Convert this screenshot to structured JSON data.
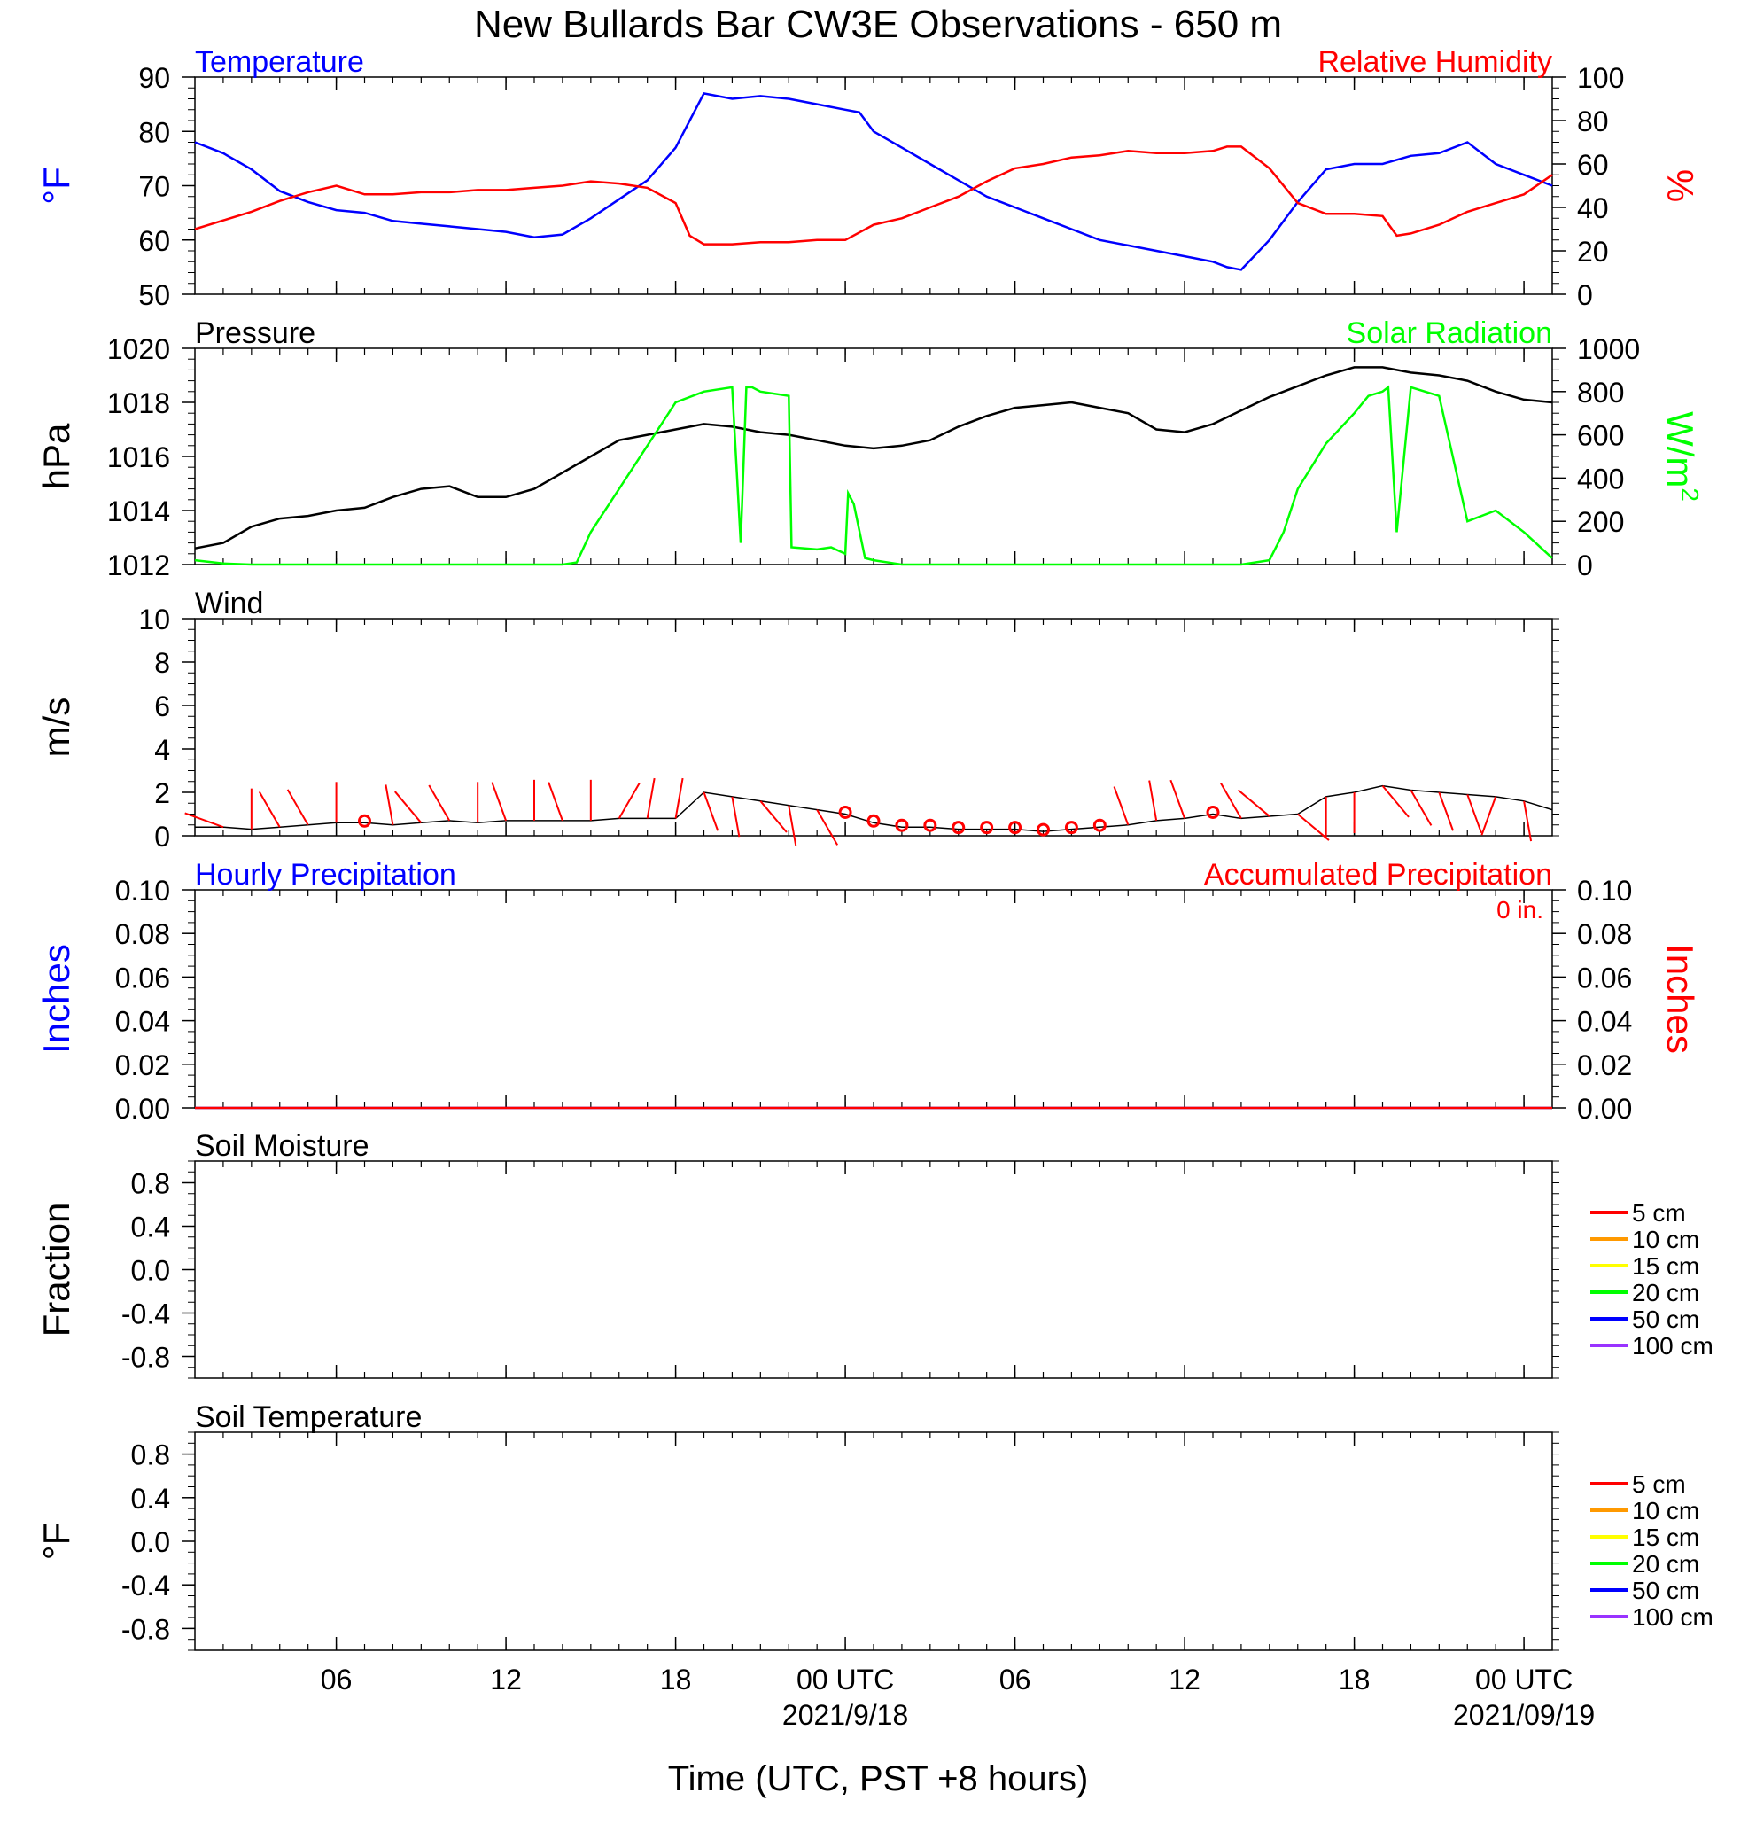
{
  "title": "New Bullards Bar CW3E Observations - 650 m",
  "colors": {
    "temperature": "#0000ff",
    "humidity": "#ff0000",
    "pressure": "#000000",
    "solar": "#00ff00",
    "wind": "#000000",
    "wind_barb": "#ff0000",
    "hourly_precip": "#0000ff",
    "accum_precip": "#ff0000"
  },
  "x_axis": {
    "label": "Time (UTC, PST +8 hours)",
    "range_hours": [
      0,
      48
    ],
    "ticks": [
      {
        "hour": 5,
        "label": "06"
      },
      {
        "hour": 11,
        "label": "12"
      },
      {
        "hour": 17,
        "label": "18"
      },
      {
        "hour": 23,
        "label": "00 UTC"
      },
      {
        "hour": 29,
        "label": "06"
      },
      {
        "hour": 35,
        "label": "12"
      },
      {
        "hour": 41,
        "label": "18"
      },
      {
        "hour": 47,
        "label": "00 UTC"
      }
    ],
    "date_labels": [
      {
        "hour": 23,
        "label": "2021/9/18"
      },
      {
        "hour": 47,
        "label": "2021/09/19"
      }
    ]
  },
  "chart_data": [
    {
      "type": "line",
      "title_left": "Temperature",
      "title_right": "Relative Humidity",
      "ylabel_left": "°F",
      "ylabel_right": "%",
      "ylim_left": [
        50,
        90
      ],
      "yticks_left": [
        "50",
        "60",
        "70",
        "80",
        "90"
      ],
      "ylim_right": [
        0,
        100
      ],
      "yticks_right": [
        "0",
        "20",
        "40",
        "60",
        "80",
        "100"
      ],
      "series": [
        {
          "name": "Temperature",
          "axis": "left",
          "color": "#0000ff",
          "x": [
            0,
            1,
            2,
            3,
            4,
            5,
            6,
            7,
            8,
            9,
            10,
            11,
            12,
            13,
            14,
            15,
            16,
            17,
            17.5,
            18,
            19,
            20,
            21,
            22,
            23,
            23.5,
            24,
            25,
            26,
            27,
            28,
            29,
            30,
            31,
            32,
            33,
            34,
            35,
            36,
            36.5,
            37,
            38,
            39,
            40,
            41,
            42,
            43,
            44,
            45,
            46,
            47,
            48
          ],
          "y": [
            78,
            76,
            73,
            69,
            67,
            65.5,
            65,
            63.5,
            63,
            62.5,
            62,
            61.5,
            60.5,
            61,
            64,
            67.5,
            71,
            77,
            82,
            87,
            86,
            86.5,
            86,
            85,
            84,
            83.5,
            80,
            77,
            74,
            71,
            68,
            66,
            64,
            62,
            60,
            59,
            58,
            57,
            56,
            55,
            54.5,
            60,
            67,
            73,
            74,
            74,
            75.5,
            76,
            78,
            74,
            72,
            70
          ]
        },
        {
          "name": "Relative Humidity",
          "axis": "right",
          "color": "#ff0000",
          "x": [
            0,
            1,
            2,
            3,
            4,
            5,
            6,
            7,
            8,
            9,
            10,
            11,
            12,
            13,
            14,
            15,
            16,
            17,
            17.5,
            18,
            19,
            20,
            21,
            22,
            23,
            24,
            25,
            26,
            27,
            28,
            29,
            30,
            31,
            32,
            33,
            34,
            35,
            36,
            36.5,
            37,
            38,
            39,
            40,
            41,
            42,
            42.5,
            43,
            44,
            45,
            46,
            47,
            48
          ],
          "y": [
            30,
            34,
            38,
            43,
            47,
            50,
            46,
            46,
            47,
            47,
            48,
            48,
            49,
            50,
            52,
            51,
            49,
            42,
            27,
            23,
            23,
            24,
            24,
            25,
            25,
            32,
            35,
            40,
            45,
            52,
            58,
            60,
            63,
            64,
            66,
            65,
            65,
            66,
            68,
            68,
            58,
            42,
            37,
            37,
            36,
            27,
            28,
            32,
            38,
            42,
            46,
            55
          ]
        }
      ]
    },
    {
      "type": "line",
      "title_left": "Pressure",
      "title_right": "Solar Radiation",
      "ylabel_left": "hPa",
      "ylabel_right": "W/m2",
      "ylim_left": [
        1012,
        1020
      ],
      "yticks_left": [
        "1012",
        "1014",
        "1016",
        "1018",
        "1020"
      ],
      "ylim_right": [
        0,
        1000
      ],
      "yticks_right": [
        "0",
        "200",
        "400",
        "600",
        "800",
        "1000"
      ],
      "series": [
        {
          "name": "Pressure",
          "axis": "left",
          "color": "#000000",
          "x": [
            0,
            1,
            2,
            3,
            4,
            5,
            6,
            7,
            8,
            9,
            10,
            11,
            12,
            13,
            14,
            15,
            16,
            17,
            18,
            19,
            20,
            21,
            22,
            23,
            24,
            25,
            26,
            27,
            28,
            29,
            30,
            31,
            32,
            33,
            34,
            35,
            36,
            37,
            38,
            39,
            40,
            41,
            42,
            43,
            44,
            45,
            46,
            47,
            48
          ],
          "y": [
            1012.6,
            1012.8,
            1013.4,
            1013.7,
            1013.8,
            1014.0,
            1014.1,
            1014.5,
            1014.8,
            1014.9,
            1014.5,
            1014.5,
            1014.8,
            1015.4,
            1016.0,
            1016.6,
            1016.8,
            1017.0,
            1017.2,
            1017.1,
            1016.9,
            1016.8,
            1016.6,
            1016.4,
            1016.3,
            1016.4,
            1016.6,
            1017.1,
            1017.5,
            1017.8,
            1017.9,
            1018.0,
            1017.8,
            1017.6,
            1017.0,
            1016.9,
            1017.2,
            1017.7,
            1018.2,
            1018.6,
            1019.0,
            1019.3,
            1019.3,
            1019.1,
            1019.0,
            1018.8,
            1018.4,
            1018.1,
            1018.0
          ]
        },
        {
          "name": "Solar Radiation",
          "axis": "right",
          "color": "#00ff00",
          "x": [
            0,
            1,
            2,
            3,
            4,
            5,
            6,
            7,
            8,
            9,
            10,
            11,
            12,
            13,
            13.5,
            14,
            15,
            16,
            17,
            18,
            19,
            19.3,
            19.5,
            19.7,
            20,
            21,
            21.1,
            22,
            22.5,
            23,
            23.1,
            23.3,
            23.7,
            24,
            25,
            26,
            27,
            28,
            29,
            30,
            31,
            32,
            33,
            34,
            35,
            36,
            37,
            38,
            38.5,
            39,
            40,
            41,
            41.5,
            42,
            42.2,
            42.5,
            43,
            44,
            45,
            46,
            47,
            48
          ],
          "y": [
            20,
            5,
            0,
            0,
            0,
            0,
            0,
            0,
            0,
            0,
            0,
            0,
            0,
            0,
            10,
            150,
            350,
            550,
            750,
            800,
            820,
            100,
            820,
            820,
            800,
            780,
            80,
            70,
            80,
            50,
            330,
            280,
            30,
            20,
            0,
            0,
            0,
            0,
            0,
            0,
            0,
            0,
            0,
            0,
            0,
            0,
            0,
            20,
            150,
            350,
            560,
            700,
            780,
            800,
            820,
            150,
            820,
            780,
            200,
            250,
            150,
            30
          ]
        }
      ]
    },
    {
      "type": "line",
      "title_left": "Wind",
      "ylabel_left": "m/s",
      "ylim_left": [
        0,
        10
      ],
      "yticks_left": [
        "0",
        "2",
        "4",
        "6",
        "8",
        "10"
      ],
      "series": [
        {
          "name": "Wind",
          "axis": "left",
          "color": "#000000",
          "x": [
            0,
            1,
            2,
            3,
            4,
            5,
            6,
            7,
            8,
            9,
            10,
            11,
            12,
            13,
            14,
            15,
            16,
            17,
            18,
            19,
            20,
            21,
            22,
            23,
            24,
            25,
            26,
            27,
            28,
            29,
            30,
            31,
            32,
            33,
            34,
            35,
            36,
            37,
            38,
            39,
            40,
            41,
            42,
            43,
            44,
            45,
            46,
            47,
            48
          ],
          "y": [
            0.4,
            0.4,
            0.3,
            0.4,
            0.5,
            0.6,
            0.6,
            0.5,
            0.6,
            0.7,
            0.6,
            0.7,
            0.7,
            0.7,
            0.7,
            0.8,
            0.8,
            0.8,
            2.0,
            1.8,
            1.6,
            1.4,
            1.2,
            1.0,
            0.6,
            0.4,
            0.4,
            0.3,
            0.3,
            0.3,
            0.2,
            0.3,
            0.4,
            0.5,
            0.7,
            0.8,
            1.0,
            0.8,
            0.9,
            1.0,
            1.8,
            2.0,
            2.3,
            2.1,
            2.0,
            1.9,
            1.8,
            1.6,
            1.2
          ]
        },
        {
          "name": "Wind direction",
          "type": "barbs",
          "color": "#ff0000",
          "x": [
            1,
            2,
            3,
            4,
            5,
            6,
            7,
            8,
            9,
            10,
            11,
            12,
            13,
            14,
            15,
            16,
            17,
            18,
            19,
            20,
            21,
            22,
            23,
            24,
            25,
            26,
            27,
            28,
            29,
            30,
            31,
            32,
            33,
            34,
            35,
            36,
            37,
            38,
            39,
            40,
            41,
            42,
            43,
            44,
            45,
            46,
            47
          ],
          "speed": [
            1.0,
            0.5,
            1.2,
            1.0,
            0.5,
            0,
            1.2,
            1.0,
            1.1,
            0.5,
            1.0,
            1.0,
            1.0,
            1.0,
            1.0,
            1.2,
            1.0,
            1.0,
            1.0,
            1.0,
            1.0,
            1.0,
            0,
            0,
            0,
            0,
            0,
            0,
            0,
            0,
            0,
            0,
            1.0,
            1.0,
            1.0,
            0,
            1.2,
            1.0,
            1.0,
            1.0,
            1.0,
            1.0,
            1.2,
            1.0,
            1.0,
            1.0,
            1.0
          ],
          "dir_deg": [
            290,
            0,
            330,
            330,
            0,
            0,
            350,
            320,
            330,
            0,
            340,
            0,
            340,
            0,
            30,
            10,
            10,
            160,
            170,
            140,
            170,
            150,
            0,
            0,
            0,
            0,
            0,
            0,
            0,
            0,
            0,
            0,
            340,
            350,
            340,
            0,
            330,
            310,
            130,
            180,
            180,
            140,
            150,
            160,
            160,
            200,
            170
          ]
        }
      ]
    },
    {
      "type": "line",
      "title_left": "Hourly Precipitation",
      "title_right": "Accumulated Precipitation",
      "annotation": "0 in.",
      "ylabel_left": "Inches",
      "ylabel_right": "Inches",
      "ylim_left": [
        0,
        0.1
      ],
      "yticks_left": [
        "0.00",
        "0.02",
        "0.04",
        "0.06",
        "0.08",
        "0.10"
      ],
      "ylim_right": [
        0,
        0.1
      ],
      "yticks_right": [
        "0.00",
        "0.02",
        "0.04",
        "0.06",
        "0.08",
        "0.10"
      ],
      "series": [
        {
          "name": "Hourly Precipitation",
          "axis": "left",
          "color": "#0000ff",
          "x": [
            0,
            48
          ],
          "y": [
            0,
            0
          ]
        },
        {
          "name": "Accumulated Precipitation",
          "axis": "right",
          "color": "#ff0000",
          "x": [
            0,
            48
          ],
          "y": [
            0,
            0
          ]
        }
      ]
    },
    {
      "type": "line",
      "title_left": "Soil Moisture",
      "ylabel_left": "Fraction",
      "ylim_left": [
        -1,
        1
      ],
      "yticks_left": [
        "-0.8",
        "-0.4",
        "0.0",
        "0.4",
        "0.8"
      ],
      "yticks_values": [
        -0.8,
        -0.4,
        0.0,
        0.4,
        0.8
      ],
      "legend": [
        {
          "label": "5 cm",
          "color": "#ff0000"
        },
        {
          "label": "10 cm",
          "color": "#ff9900"
        },
        {
          "label": "15 cm",
          "color": "#ffff00"
        },
        {
          "label": "20 cm",
          "color": "#00ff00"
        },
        {
          "label": "50 cm",
          "color": "#0000ff"
        },
        {
          "label": "100 cm",
          "color": "#9933ff"
        }
      ],
      "series": []
    },
    {
      "type": "line",
      "title_left": "Soil Temperature",
      "ylabel_left": "°F",
      "ylim_left": [
        -1,
        1
      ],
      "yticks_left": [
        "-0.8",
        "-0.4",
        "0.0",
        "0.4",
        "0.8"
      ],
      "yticks_values": [
        -0.8,
        -0.4,
        0.0,
        0.4,
        0.8
      ],
      "legend": [
        {
          "label": "5 cm",
          "color": "#ff0000"
        },
        {
          "label": "10 cm",
          "color": "#ff9900"
        },
        {
          "label": "15 cm",
          "color": "#ffff00"
        },
        {
          "label": "20 cm",
          "color": "#00ff00"
        },
        {
          "label": "50 cm",
          "color": "#0000ff"
        },
        {
          "label": "100 cm",
          "color": "#9933ff"
        }
      ],
      "series": []
    }
  ]
}
